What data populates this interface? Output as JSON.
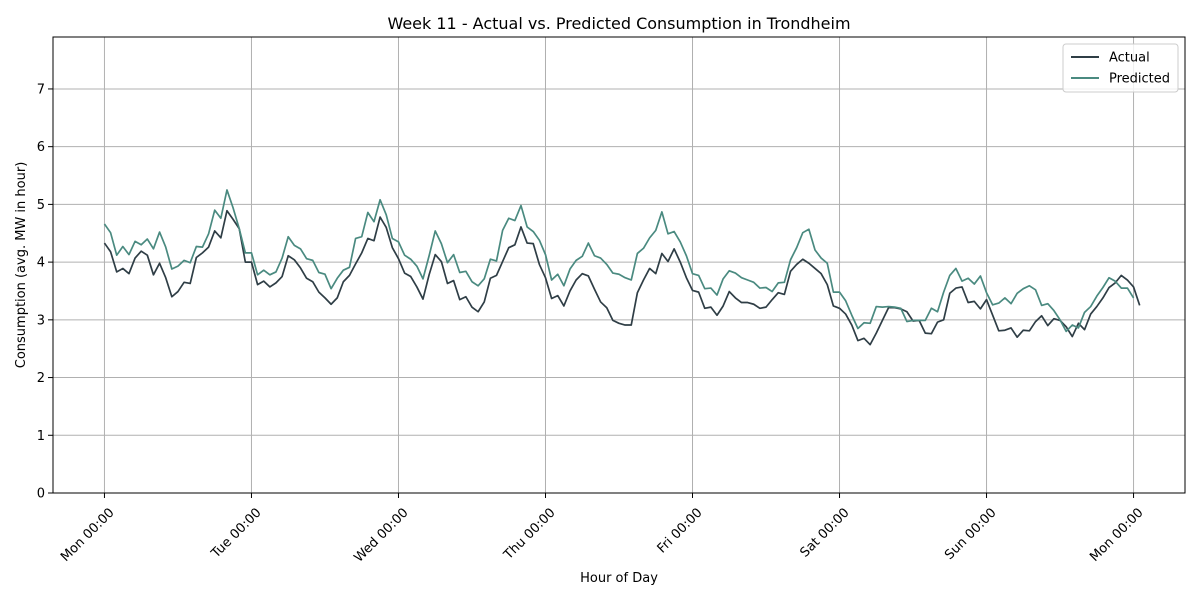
{
  "chart_data": {
    "type": "line",
    "title": "Week 11 - Actual vs. Predicted Consumption in Trondheim",
    "xlabel": "Hour of Day",
    "ylabel": "Consumption (avg. MW in hour)",
    "xlim_hours": [
      -8.4,
      176.4
    ],
    "ylim": [
      0,
      7.9
    ],
    "yticks": [
      0,
      1,
      2,
      3,
      4,
      5,
      6,
      7
    ],
    "xticks": [
      {
        "hour": 0,
        "label": "Mon 00:00"
      },
      {
        "hour": 24,
        "label": "Tue 00:00"
      },
      {
        "hour": 48,
        "label": "Wed 00:00"
      },
      {
        "hour": 72,
        "label": "Thu 00:00"
      },
      {
        "hour": 96,
        "label": "Fri 00:00"
      },
      {
        "hour": 120,
        "label": "Sat 00:00"
      },
      {
        "hour": 144,
        "label": "Sun 00:00"
      },
      {
        "hour": 168,
        "label": "Mon 00:00"
      }
    ],
    "grid": true,
    "legend_position": "top-right",
    "series": [
      {
        "name": "Actual",
        "color": "#2f3e46",
        "values": [
          4.33,
          4.18,
          3.83,
          3.89,
          3.8,
          4.07,
          4.19,
          4.12,
          3.78,
          3.98,
          3.73,
          3.4,
          3.49,
          3.65,
          3.63,
          4.08,
          4.16,
          4.26,
          4.54,
          4.42,
          4.89,
          4.74,
          4.58,
          4.0,
          4.0,
          3.61,
          3.67,
          3.57,
          3.64,
          3.75,
          4.11,
          4.04,
          3.9,
          3.72,
          3.66,
          3.48,
          3.38,
          3.27,
          3.38,
          3.66,
          3.77,
          3.97,
          4.16,
          4.41,
          4.37,
          4.78,
          4.6,
          4.25,
          4.06,
          3.81,
          3.75,
          3.57,
          3.36,
          3.78,
          4.13,
          4.01,
          3.63,
          3.68,
          3.35,
          3.4,
          3.22,
          3.14,
          3.31,
          3.72,
          3.77,
          4.01,
          4.25,
          4.3,
          4.61,
          4.33,
          4.32,
          3.96,
          3.73,
          3.37,
          3.42,
          3.24,
          3.5,
          3.69,
          3.8,
          3.76,
          3.53,
          3.31,
          3.21,
          2.99,
          2.94,
          2.91,
          2.91,
          3.47,
          3.69,
          3.89,
          3.8,
          4.15,
          4.01,
          4.23,
          4.0,
          3.73,
          3.51,
          3.48,
          3.2,
          3.22,
          3.08,
          3.24,
          3.49,
          3.38,
          3.3,
          3.3,
          3.27,
          3.2,
          3.22,
          3.35,
          3.47,
          3.44,
          3.84,
          3.96,
          4.05,
          3.98,
          3.89,
          3.8,
          3.61,
          3.24,
          3.2,
          3.1,
          2.91,
          2.64,
          2.68,
          2.57,
          2.77,
          2.99,
          3.21,
          3.21,
          3.19,
          3.14,
          2.98,
          2.99,
          2.77,
          2.76,
          2.96,
          3.0,
          3.46,
          3.55,
          3.57,
          3.3,
          3.32,
          3.19,
          3.35,
          3.08,
          2.81,
          2.82,
          2.86,
          2.7,
          2.82,
          2.81,
          2.97,
          3.07,
          2.9,
          3.02,
          2.99,
          2.88,
          2.71,
          2.94,
          2.83,
          3.1,
          3.23,
          3.38,
          3.56,
          3.64,
          3.77,
          3.69,
          3.57,
          3.25
        ]
      },
      {
        "name": "Predicted",
        "color": "#4a8a80",
        "values": [
          4.66,
          4.51,
          4.12,
          4.27,
          4.13,
          4.36,
          4.3,
          4.4,
          4.23,
          4.52,
          4.26,
          3.88,
          3.93,
          4.03,
          3.99,
          4.27,
          4.26,
          4.49,
          4.9,
          4.76,
          5.25,
          4.94,
          4.58,
          4.16,
          4.16,
          3.78,
          3.86,
          3.78,
          3.83,
          4.07,
          4.44,
          4.29,
          4.23,
          4.06,
          4.03,
          3.82,
          3.79,
          3.54,
          3.72,
          3.86,
          3.91,
          4.41,
          4.44,
          4.86,
          4.7,
          5.08,
          4.82,
          4.41,
          4.35,
          4.12,
          4.05,
          3.93,
          3.71,
          4.11,
          4.54,
          4.32,
          3.99,
          4.13,
          3.82,
          3.84,
          3.66,
          3.59,
          3.71,
          4.05,
          4.02,
          4.55,
          4.76,
          4.72,
          4.98,
          4.61,
          4.53,
          4.38,
          4.13,
          3.69,
          3.79,
          3.59,
          3.88,
          4.03,
          4.1,
          4.33,
          4.11,
          4.07,
          3.96,
          3.81,
          3.79,
          3.73,
          3.69,
          4.15,
          4.24,
          4.42,
          4.55,
          4.87,
          4.49,
          4.53,
          4.35,
          4.11,
          3.8,
          3.77,
          3.54,
          3.55,
          3.43,
          3.71,
          3.85,
          3.81,
          3.73,
          3.69,
          3.65,
          3.55,
          3.56,
          3.49,
          3.64,
          3.65,
          4.04,
          4.25,
          4.51,
          4.57,
          4.21,
          4.07,
          3.98,
          3.48,
          3.48,
          3.33,
          3.08,
          2.85,
          2.95,
          2.94,
          3.23,
          3.22,
          3.23,
          3.22,
          3.2,
          2.97,
          2.99,
          2.99,
          2.99,
          3.2,
          3.14,
          3.48,
          3.77,
          3.89,
          3.67,
          3.72,
          3.62,
          3.76,
          3.47,
          3.26,
          3.29,
          3.38,
          3.28,
          3.46,
          3.54,
          3.59,
          3.52,
          3.25,
          3.28,
          3.16,
          3.0,
          2.8,
          2.91,
          2.86,
          3.13,
          3.23,
          3.41,
          3.56,
          3.73,
          3.67,
          3.55,
          3.55,
          3.38
        ]
      }
    ]
  }
}
